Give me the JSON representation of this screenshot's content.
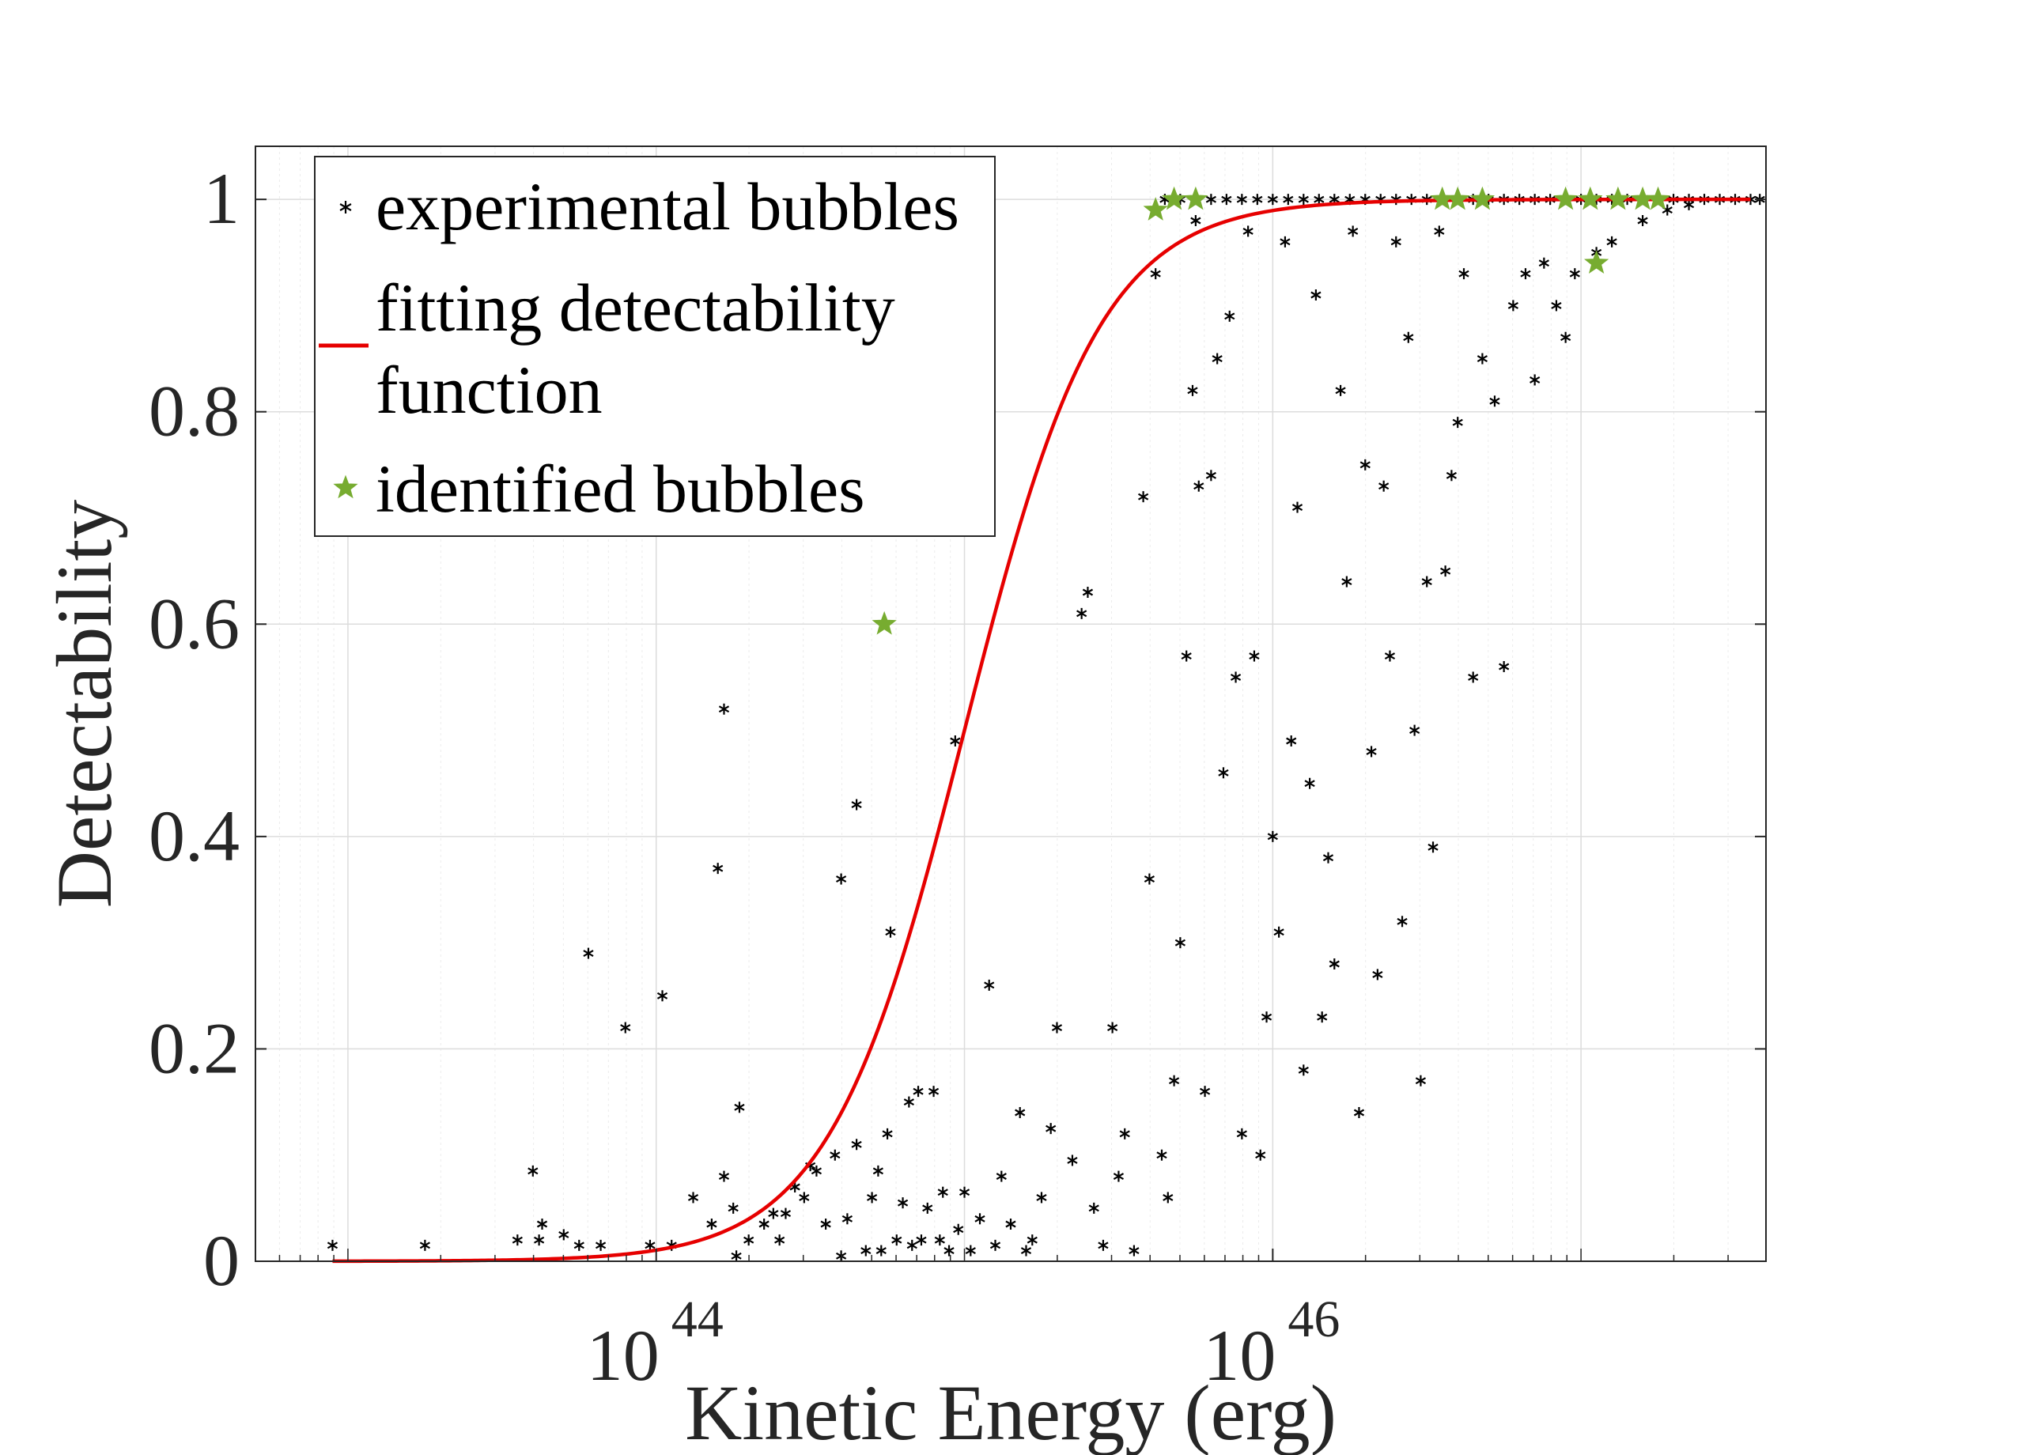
{
  "chart_data": {
    "type": "scatter",
    "title": "",
    "xlabel": "Kinetic Energy (erg)",
    "ylabel": "Detectability",
    "x_scale": "log",
    "xlim_log10": [
      42.7,
      47.6
    ],
    "ylim": [
      0,
      1.05
    ],
    "grid": true,
    "legend_position": "top-left",
    "x_tick_labels": [
      {
        "base": "10",
        "exp": "44",
        "log10": 44
      },
      {
        "base": "10",
        "exp": "46",
        "log10": 46
      }
    ],
    "y_tick_labels": [
      "0",
      "0.2",
      "0.4",
      "0.6",
      "0.8",
      "1"
    ],
    "y_ticks": [
      0,
      0.2,
      0.4,
      0.6,
      0.8,
      1.0
    ],
    "legend": [
      {
        "key": "experimental",
        "label_lines": [
          "experimental bubbles"
        ]
      },
      {
        "key": "fit",
        "label_lines": [
          "fitting detectability",
          "function"
        ]
      },
      {
        "key": "identified",
        "label_lines": [
          "identified bubbles"
        ]
      }
    ],
    "colors": {
      "experimental": "#000000",
      "fit": "#e60000",
      "identified": "#77ac30",
      "grid": "#dcdcdc",
      "axis": "#262626"
    },
    "fit_function": {
      "form": "logistic in log10(E)",
      "midpoint_log10": 45.0,
      "scale": 0.22
    },
    "series": [
      {
        "name": "experimental bubbles",
        "points": [
          [
            42.95,
            0.015
          ],
          [
            43.25,
            0.015
          ],
          [
            43.55,
            0.02
          ],
          [
            43.6,
            0.085
          ],
          [
            43.62,
            0.02
          ],
          [
            43.63,
            0.035
          ],
          [
            43.7,
            0.025
          ],
          [
            43.75,
            0.015
          ],
          [
            43.78,
            0.29
          ],
          [
            43.82,
            0.015
          ],
          [
            43.9,
            0.22
          ],
          [
            43.98,
            0.015
          ],
          [
            44.02,
            0.25
          ],
          [
            44.05,
            0.015
          ],
          [
            44.12,
            0.06
          ],
          [
            44.18,
            0.035
          ],
          [
            44.2,
            0.37
          ],
          [
            44.22,
            0.52
          ],
          [
            44.22,
            0.08
          ],
          [
            44.25,
            0.05
          ],
          [
            44.26,
            0.005
          ],
          [
            44.27,
            0.145
          ],
          [
            44.3,
            0.02
          ],
          [
            44.35,
            0.035
          ],
          [
            44.38,
            0.045
          ],
          [
            44.4,
            0.02
          ],
          [
            44.42,
            0.045
          ],
          [
            44.45,
            0.07
          ],
          [
            44.48,
            0.06
          ],
          [
            44.5,
            0.09
          ],
          [
            44.52,
            0.085
          ],
          [
            44.55,
            0.035
          ],
          [
            44.58,
            0.1
          ],
          [
            44.6,
            0.005
          ],
          [
            44.6,
            0.36
          ],
          [
            44.62,
            0.04
          ],
          [
            44.65,
            0.11
          ],
          [
            44.65,
            0.43
          ],
          [
            44.68,
            0.01
          ],
          [
            44.7,
            0.06
          ],
          [
            44.72,
            0.085
          ],
          [
            44.73,
            0.01
          ],
          [
            44.75,
            0.12
          ],
          [
            44.76,
            0.31
          ],
          [
            44.78,
            0.02
          ],
          [
            44.8,
            0.055
          ],
          [
            44.82,
            0.15
          ],
          [
            44.83,
            0.015
          ],
          [
            44.85,
            0.16
          ],
          [
            44.86,
            0.02
          ],
          [
            44.88,
            0.05
          ],
          [
            44.9,
            0.16
          ],
          [
            44.92,
            0.02
          ],
          [
            44.93,
            0.065
          ],
          [
            44.95,
            0.01
          ],
          [
            44.97,
            0.49
          ],
          [
            44.98,
            0.03
          ],
          [
            45.0,
            0.065
          ],
          [
            45.02,
            0.01
          ],
          [
            45.05,
            0.04
          ],
          [
            45.08,
            0.26
          ],
          [
            45.1,
            0.015
          ],
          [
            45.12,
            0.08
          ],
          [
            45.15,
            0.035
          ],
          [
            45.18,
            0.14
          ],
          [
            45.2,
            0.01
          ],
          [
            45.22,
            0.02
          ],
          [
            45.25,
            0.06
          ],
          [
            45.28,
            0.125
          ],
          [
            45.3,
            0.22
          ],
          [
            45.35,
            0.095
          ],
          [
            45.38,
            0.61
          ],
          [
            45.4,
            0.63
          ],
          [
            45.42,
            0.05
          ],
          [
            45.45,
            0.015
          ],
          [
            45.48,
            0.22
          ],
          [
            45.5,
            0.08
          ],
          [
            45.52,
            0.12
          ],
          [
            45.55,
            0.01
          ],
          [
            45.58,
            0.72
          ],
          [
            45.6,
            0.36
          ],
          [
            45.62,
            0.93
          ],
          [
            45.64,
            0.1
          ],
          [
            45.66,
            0.06
          ],
          [
            45.68,
            0.17
          ],
          [
            45.7,
            0.3
          ],
          [
            45.72,
            0.57
          ],
          [
            45.74,
            0.82
          ],
          [
            45.75,
            0.98
          ],
          [
            45.76,
            0.73
          ],
          [
            45.78,
            0.16
          ],
          [
            45.8,
            0.74
          ],
          [
            45.82,
            0.85
          ],
          [
            45.84,
            0.46
          ],
          [
            45.86,
            0.89
          ],
          [
            45.88,
            0.55
          ],
          [
            45.9,
            0.12
          ],
          [
            45.92,
            0.97
          ],
          [
            45.94,
            0.57
          ],
          [
            45.96,
            0.1
          ],
          [
            45.98,
            0.23
          ],
          [
            46.0,
            0.4
          ],
          [
            46.02,
            0.31
          ],
          [
            46.04,
            0.96
          ],
          [
            46.06,
            0.49
          ],
          [
            46.08,
            0.71
          ],
          [
            46.1,
            0.18
          ],
          [
            46.12,
            0.45
          ],
          [
            46.14,
            0.91
          ],
          [
            46.16,
            0.23
          ],
          [
            46.18,
            0.38
          ],
          [
            46.2,
            0.28
          ],
          [
            46.22,
            0.82
          ],
          [
            46.24,
            0.64
          ],
          [
            46.26,
            0.97
          ],
          [
            46.28,
            0.14
          ],
          [
            46.3,
            0.75
          ],
          [
            46.32,
            0.48
          ],
          [
            46.34,
            0.27
          ],
          [
            46.36,
            0.73
          ],
          [
            46.38,
            0.57
          ],
          [
            46.4,
            0.96
          ],
          [
            46.42,
            0.32
          ],
          [
            46.44,
            0.87
          ],
          [
            46.46,
            0.5
          ],
          [
            46.48,
            0.17
          ],
          [
            46.5,
            0.64
          ],
          [
            46.52,
            0.39
          ],
          [
            46.54,
            0.97
          ],
          [
            46.56,
            0.65
          ],
          [
            46.58,
            0.74
          ],
          [
            46.6,
            0.79
          ],
          [
            46.62,
            0.93
          ],
          [
            46.65,
            0.55
          ],
          [
            46.68,
            0.85
          ],
          [
            46.72,
            0.81
          ],
          [
            46.75,
            0.56
          ],
          [
            46.78,
            0.9
          ],
          [
            46.82,
            0.93
          ],
          [
            46.85,
            0.83
          ],
          [
            46.88,
            0.94
          ],
          [
            46.92,
            0.9
          ],
          [
            46.95,
            0.87
          ],
          [
            46.98,
            0.93
          ],
          [
            47.05,
            0.95
          ],
          [
            47.1,
            0.96
          ],
          [
            47.2,
            0.98
          ],
          [
            47.28,
            0.99
          ],
          [
            47.35,
            0.995
          ],
          [
            45.65,
            1.0
          ],
          [
            45.7,
            1.0
          ],
          [
            45.75,
            1.0
          ],
          [
            45.8,
            1.0
          ],
          [
            45.85,
            1.0
          ],
          [
            45.9,
            1.0
          ],
          [
            45.95,
            1.0
          ],
          [
            46.0,
            1.0
          ],
          [
            46.05,
            1.0
          ],
          [
            46.1,
            1.0
          ],
          [
            46.15,
            1.0
          ],
          [
            46.2,
            1.0
          ],
          [
            46.25,
            1.0
          ],
          [
            46.3,
            1.0
          ],
          [
            46.35,
            1.0
          ],
          [
            46.4,
            1.0
          ],
          [
            46.45,
            1.0
          ],
          [
            46.5,
            1.0
          ],
          [
            46.55,
            1.0
          ],
          [
            46.6,
            1.0
          ],
          [
            46.65,
            1.0
          ],
          [
            46.7,
            1.0
          ],
          [
            46.75,
            1.0
          ],
          [
            46.8,
            1.0
          ],
          [
            46.85,
            1.0
          ],
          [
            46.9,
            1.0
          ],
          [
            46.95,
            1.0
          ],
          [
            47.0,
            1.0
          ],
          [
            47.05,
            1.0
          ],
          [
            47.1,
            1.0
          ],
          [
            47.15,
            1.0
          ],
          [
            47.2,
            1.0
          ],
          [
            47.25,
            1.0
          ],
          [
            47.3,
            1.0
          ],
          [
            47.35,
            1.0
          ],
          [
            47.4,
            1.0
          ],
          [
            47.45,
            1.0
          ],
          [
            47.5,
            1.0
          ],
          [
            47.55,
            1.0
          ],
          [
            47.58,
            1.0
          ]
        ]
      },
      {
        "name": "identified bubbles",
        "points": [
          [
            44.74,
            0.6
          ],
          [
            45.62,
            0.99
          ],
          [
            45.68,
            1.0
          ],
          [
            45.75,
            1.0
          ],
          [
            46.55,
            1.0
          ],
          [
            46.6,
            1.0
          ],
          [
            46.68,
            1.0
          ],
          [
            46.95,
            1.0
          ],
          [
            47.03,
            1.0
          ],
          [
            47.05,
            0.94
          ],
          [
            47.12,
            1.0
          ],
          [
            47.2,
            1.0
          ],
          [
            47.25,
            1.0
          ]
        ]
      }
    ]
  }
}
